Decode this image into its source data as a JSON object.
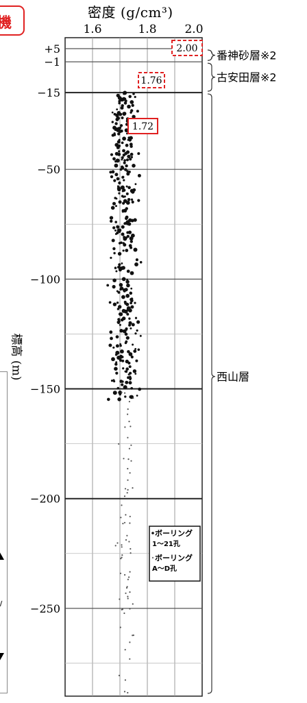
{
  "badge": {
    "text": "機",
    "color": "#e02020"
  },
  "chart_data": {
    "type": "scatter",
    "title": "密度 (g/cm³)",
    "x_ticks": [
      "1.6",
      "1.8",
      "2.0"
    ],
    "xlim": [
      1.5,
      2.0
    ],
    "ylabel": "標高 (m)",
    "y_ticks": [
      "+5",
      "−1",
      "−15",
      "−50",
      "−100",
      "−150",
      "−200",
      "−250"
    ],
    "y_tick_values": [
      5,
      -1,
      -15,
      -50,
      -100,
      -150,
      -200,
      -250
    ],
    "ylim": [
      10,
      -290
    ],
    "grid": true,
    "legend_position": "bottom-right",
    "legend": [
      {
        "label": "ボーリング 1〜21孔",
        "marker": "large"
      },
      {
        "label": "ボーリング A〜D孔",
        "marker": "small"
      }
    ],
    "layers": [
      {
        "name": "番神砂層※2",
        "top": 5,
        "bottom": -1,
        "density_label": "2.00",
        "density": 2.0,
        "box_style": "dashed"
      },
      {
        "name": "古安田層※2",
        "top": -1,
        "bottom": -15,
        "density_label": "1.76",
        "density": 1.76,
        "box_style": "dashed"
      },
      {
        "name": "西山層",
        "top": -15,
        "bottom": -290,
        "density_label": "1.72",
        "density": 1.72,
        "box_style": "solid"
      }
    ],
    "density_box_color": "#e02020"
  },
  "left_panel": {
    "text": "∨"
  }
}
